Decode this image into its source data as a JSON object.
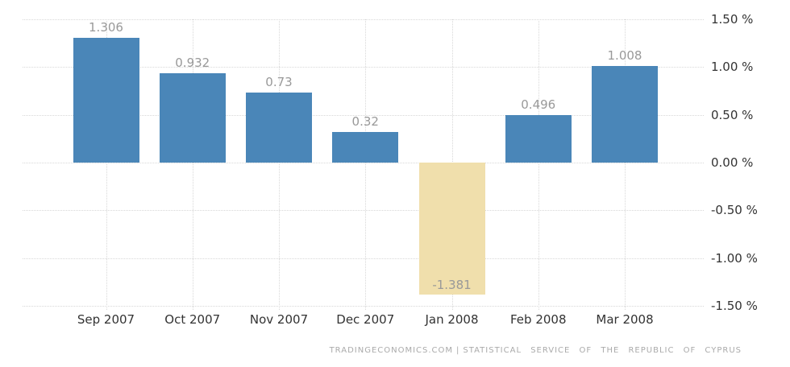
{
  "chart_data": {
    "type": "bar",
    "title": "",
    "xlabel": "",
    "ylabel": "",
    "categories": [
      "Sep 2007",
      "Oct 2007",
      "Nov 2007",
      "Dec 2007",
      "Jan 2008",
      "Feb 2008",
      "Mar 2008"
    ],
    "values": [
      1.306,
      0.932,
      0.73,
      0.32,
      -1.381,
      0.496,
      1.008
    ],
    "value_labels": [
      "1.306",
      "0.932",
      "0.73",
      "0.32",
      "-1.381",
      "0.496",
      "1.008"
    ],
    "ylim": [
      -1.5,
      1.5
    ],
    "y_tick_labels": [
      "1.50 %",
      "1.00 %",
      "0.50 %",
      "0.00 %",
      "-0.50 %",
      "-1.00 %",
      "-1.50 %"
    ],
    "y_tick_values": [
      1.5,
      1.0,
      0.5,
      0.0,
      -0.5,
      -1.0,
      -1.5
    ],
    "grid": true,
    "legend": false,
    "colors": {
      "positive_bar": "#4a86b8",
      "negative_bar": "#f0dfac",
      "value_label": "#999999",
      "axis_text": "#333333",
      "gridline": "#d8d8d8",
      "footer_text": "#aaaaaa"
    }
  },
  "footer": {
    "brand": "TRADINGECONOMICS.COM",
    "separator": "|",
    "source": "STATISTICAL SERVICE OF THE REPUBLIC OF CYPRUS"
  }
}
